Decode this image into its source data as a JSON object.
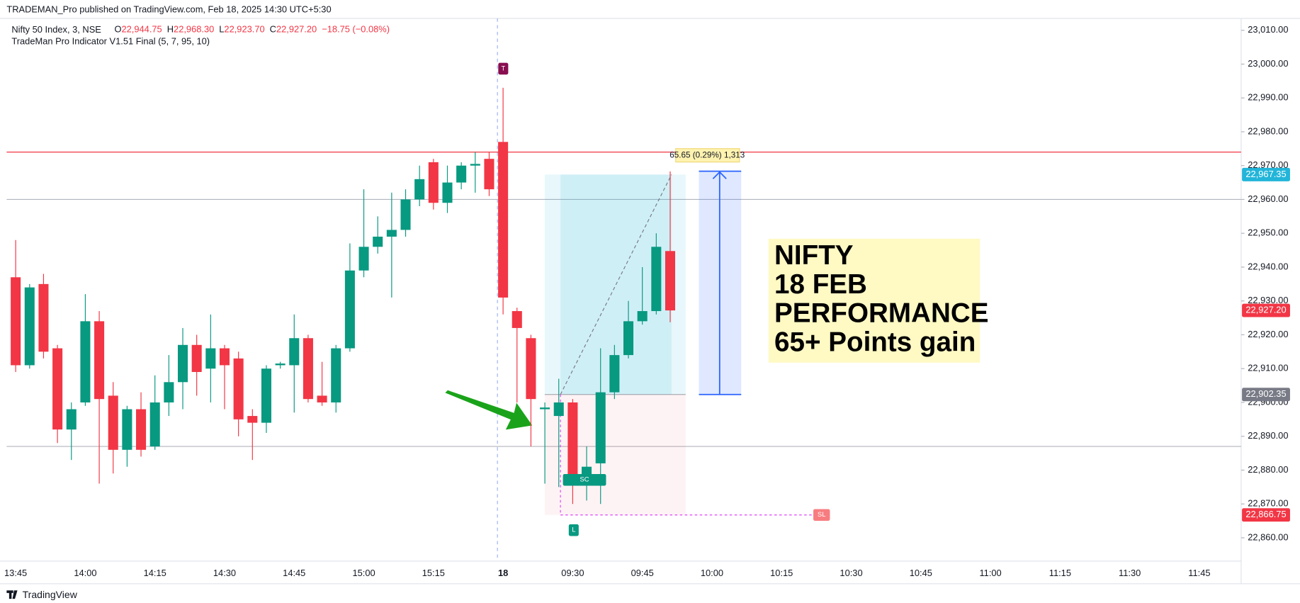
{
  "chart_data": {
    "type": "candlestick",
    "publisher": "TRADEMAN_Pro published on TradingView.com, Feb 18, 2025 14:30 UTC+5:30",
    "symbol": "Nifty 50 Index, 3, NSE",
    "ohlc_legend": [
      {
        "key": "O",
        "value": "22,944.75"
      },
      {
        "key": "H",
        "value": "22,968.30"
      },
      {
        "key": "L",
        "value": "22,923.70"
      },
      {
        "key": "C",
        "value": "22,927.20"
      }
    ],
    "change": "−18.75 (−0.08%)",
    "indicator": "TradeMan Pro Indicator V1.51 Final (5, 7, 95, 10)",
    "brand": "TradingView",
    "up_color": "#089981",
    "down_color": "#f23645",
    "open": [
      22937,
      22911,
      22935,
      22916,
      22892,
      22900,
      22924,
      22902,
      22886,
      22898,
      22887,
      22900,
      22906,
      22917,
      22910,
      22916,
      22913,
      22896,
      22894,
      22911,
      22911,
      22919,
      22902,
      22900,
      22916,
      22939,
      22946,
      22949,
      22951,
      22960,
      22971,
      22959,
      22965,
      22970,
      22972,
      22977,
      22927,
      22919,
      22898,
      22896,
      22900,
      22876,
      22882,
      22903,
      22914,
      22924,
      22927,
      22944.75
    ],
    "high": [
      22948,
      22935,
      22938,
      22917,
      22900,
      22932,
      22927,
      22906,
      22899,
      22903,
      22908,
      22914,
      22922,
      22920,
      22926,
      22917,
      22915,
      22898,
      22911,
      22912,
      22926,
      22920,
      22912,
      22917,
      22947,
      22963,
      22955,
      22962,
      22963,
      22970,
      22972,
      22970,
      22971,
      22974,
      22974,
      22993,
      22928,
      22920,
      22900,
      22907,
      22901,
      22887,
      22916,
      22917,
      22930,
      22940,
      22950,
      22968.3
    ],
    "low": [
      22909,
      22910,
      22913,
      22888,
      22883,
      22899,
      22876,
      22879,
      22881,
      22884,
      22886,
      22896,
      22898,
      22902,
      22900,
      22898,
      22890,
      22883,
      22891,
      22910,
      22897,
      22900,
      22899,
      22897,
      22915,
      22937,
      22944,
      22931,
      22949,
      22958,
      22957,
      22956,
      22963,
      22962,
      22961,
      22926,
      22900,
      22887,
      22876,
      22875,
      22870,
      22871,
      22870,
      22901,
      22913,
      22923,
      22926,
      22923.7
    ],
    "close": [
      22911,
      22934,
      22915,
      22892,
      22898,
      22924,
      22901,
      22886,
      22898,
      22886,
      22900,
      22906,
      22917,
      22909,
      22916,
      22911,
      22895,
      22894,
      22910,
      22911.5,
      22919,
      22901,
      22900,
      22916,
      22939,
      22946,
      22949,
      22951,
      22960,
      22966,
      22959,
      22965,
      22970,
      22970.5,
      22963,
      22931,
      22922,
      22901,
      22898.5,
      22900,
      22876,
      22881,
      22903,
      22914,
      22924,
      22927,
      22946,
      22927.2
    ],
    "xlim": [
      -0.65,
      88
    ],
    "xticks": [
      {
        "value": 0,
        "label": "13:45"
      },
      {
        "value": 5,
        "label": "14:00"
      },
      {
        "value": 10,
        "label": "14:15"
      },
      {
        "value": 15,
        "label": "14:30"
      },
      {
        "value": 20,
        "label": "14:45"
      },
      {
        "value": 25,
        "label": "15:00"
      },
      {
        "value": 30,
        "label": "15:15"
      },
      {
        "value": 35,
        "label": "18"
      },
      {
        "value": 40,
        "label": "09:30"
      },
      {
        "value": 45,
        "label": "09:45"
      },
      {
        "value": 50,
        "label": "10:00"
      },
      {
        "value": 55,
        "label": "10:15"
      },
      {
        "value": 60,
        "label": "10:30"
      },
      {
        "value": 65,
        "label": "10:45"
      },
      {
        "value": 70,
        "label": "11:00"
      },
      {
        "value": 75,
        "label": "11:15"
      },
      {
        "value": 80,
        "label": "11:30"
      },
      {
        "value": 85,
        "label": "11:45"
      }
    ],
    "ylim": [
      22853.1,
      23013.5
    ],
    "yticks": [
      {
        "value": 22860,
        "label": "22,860.00"
      },
      {
        "value": 22870,
        "label": "22,870.00"
      },
      {
        "value": 22880,
        "label": "22,880.00"
      },
      {
        "value": 22890,
        "label": "22,890.00"
      },
      {
        "value": 22900,
        "label": "22,900.00"
      },
      {
        "value": 22910,
        "label": "22,910.00"
      },
      {
        "value": 22920,
        "label": "22,920.00"
      },
      {
        "value": 22930,
        "label": "22,930.00"
      },
      {
        "value": 22940,
        "label": "22,940.00"
      },
      {
        "value": 22950,
        "label": "22,950.00"
      },
      {
        "value": 22960,
        "label": "22,960.00"
      },
      {
        "value": 22970,
        "label": "22,970.00"
      },
      {
        "value": 22980,
        "label": "22,980.00"
      },
      {
        "value": 22990,
        "label": "22,990.00"
      },
      {
        "value": 23000,
        "label": "23,000.00"
      },
      {
        "value": 23010,
        "label": "23,010.00"
      }
    ],
    "hlines": [
      {
        "value": 22974,
        "color": "#f23645"
      },
      {
        "value": 22960,
        "color": "#b2b5be"
      },
      {
        "value": 22887,
        "color": "#b2b5be"
      }
    ],
    "price_tags": [
      {
        "value": 22967.35,
        "label": "22,967.35",
        "color": "#22b5d9"
      },
      {
        "value": 22927.2,
        "label": "22,927.20",
        "color": "#f23645"
      },
      {
        "value": 22902.35,
        "label": "22,902.35",
        "color": "#787b86"
      },
      {
        "value": 22866.75,
        "label": "22,866.75",
        "color": "#f23645"
      }
    ],
    "measure_label": "65.65 (0.29%) 1,313",
    "markers": [
      {
        "text": "T",
        "color": "#880e4f"
      },
      {
        "text": "L",
        "color": "#089981"
      },
      {
        "text": "SC",
        "color": "#089981"
      },
      {
        "text": "SL",
        "color": "#f77c80"
      }
    ],
    "callout": [
      "NIFTY",
      "18 FEB",
      "PERFORMANCE",
      "65+ Points gain"
    ]
  }
}
